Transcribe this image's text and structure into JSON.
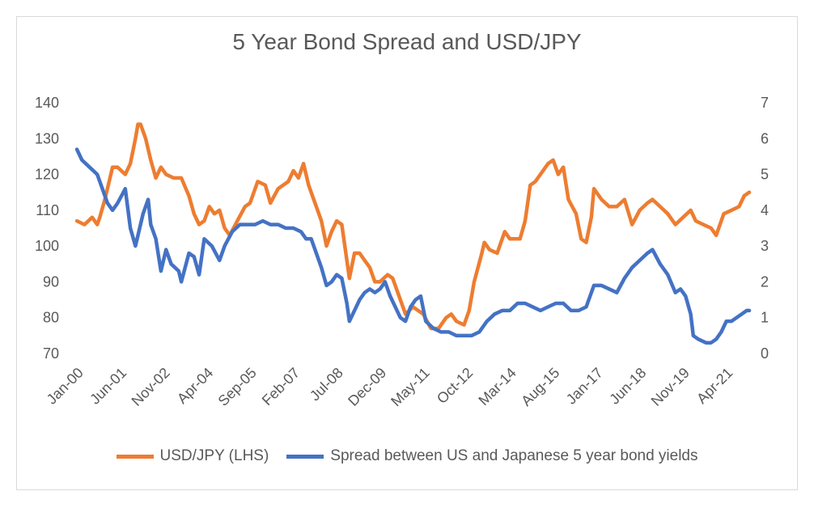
{
  "chart_data": {
    "type": "line",
    "title": "5 Year Bond Spread and USD/JPY",
    "xlabel": "",
    "ylabel": "",
    "ylim_left": [
      70,
      140
    ],
    "yticks_left": [
      "70",
      "80",
      "90",
      "100",
      "110",
      "120",
      "130",
      "140"
    ],
    "ylim_right": [
      0,
      7
    ],
    "yticks_right": [
      "0",
      "1",
      "2",
      "3",
      "4",
      "5",
      "6",
      "7"
    ],
    "x_tick_labels": [
      "Jan-00",
      "Jun-01",
      "Nov-02",
      "Apr-04",
      "Sep-05",
      "Feb-07",
      "Jul-08",
      "Dec-09",
      "May-11",
      "Oct-12",
      "Mar-14",
      "Aug-15",
      "Jan-17",
      "Jun-18",
      "Nov-19",
      "Apr-21"
    ],
    "legend_position": "bottom",
    "grid": false,
    "series": [
      {
        "name": "USD/JPY (LHS)",
        "axis": "left",
        "color": "#ED7D31",
        "points": [
          [
            "2000-01",
            107
          ],
          [
            "2000-04",
            106
          ],
          [
            "2000-07",
            108
          ],
          [
            "2000-09",
            106
          ],
          [
            "2000-10",
            108
          ],
          [
            "2000-12",
            113
          ],
          [
            "2001-03",
            122
          ],
          [
            "2001-05",
            122
          ],
          [
            "2001-08",
            120
          ],
          [
            "2001-10",
            123
          ],
          [
            "2001-12",
            130
          ],
          [
            "2002-01",
            134
          ],
          [
            "2002-02",
            134
          ],
          [
            "2002-04",
            130
          ],
          [
            "2002-06",
            124
          ],
          [
            "2002-08",
            119
          ],
          [
            "2002-10",
            122
          ],
          [
            "2002-12",
            120
          ],
          [
            "2003-03",
            119
          ],
          [
            "2003-06",
            119
          ],
          [
            "2003-09",
            114
          ],
          [
            "2003-11",
            109
          ],
          [
            "2004-01",
            106
          ],
          [
            "2004-03",
            107
          ],
          [
            "2004-05",
            111
          ],
          [
            "2004-07",
            109
          ],
          [
            "2004-09",
            110
          ],
          [
            "2004-11",
            105
          ],
          [
            "2005-01",
            103
          ],
          [
            "2005-04",
            107
          ],
          [
            "2005-07",
            111
          ],
          [
            "2005-09",
            112
          ],
          [
            "2005-12",
            118
          ],
          [
            "2006-03",
            117
          ],
          [
            "2006-05",
            112
          ],
          [
            "2006-08",
            116
          ],
          [
            "2006-12",
            118
          ],
          [
            "2007-02",
            121
          ],
          [
            "2007-04",
            119
          ],
          [
            "2007-06",
            123
          ],
          [
            "2007-08",
            117
          ],
          [
            "2007-11",
            111
          ],
          [
            "2008-01",
            107
          ],
          [
            "2008-03",
            100
          ],
          [
            "2008-05",
            104
          ],
          [
            "2008-07",
            107
          ],
          [
            "2008-09",
            106
          ],
          [
            "2008-11",
            96
          ],
          [
            "2008-12",
            91
          ],
          [
            "2009-02",
            98
          ],
          [
            "2009-04",
            98
          ],
          [
            "2009-06",
            96
          ],
          [
            "2009-08",
            94
          ],
          [
            "2009-10",
            90
          ],
          [
            "2009-12",
            90
          ],
          [
            "2010-03",
            92
          ],
          [
            "2010-05",
            91
          ],
          [
            "2010-08",
            85
          ],
          [
            "2010-10",
            81
          ],
          [
            "2011-01",
            83
          ],
          [
            "2011-03",
            82
          ],
          [
            "2011-05",
            81
          ],
          [
            "2011-08",
            77
          ],
          [
            "2011-11",
            77
          ],
          [
            "2012-02",
            80
          ],
          [
            "2012-04",
            81
          ],
          [
            "2012-06",
            79
          ],
          [
            "2012-09",
            78
          ],
          [
            "2012-11",
            82
          ],
          [
            "2013-01",
            90
          ],
          [
            "2013-04",
            98
          ],
          [
            "2013-05",
            101
          ],
          [
            "2013-07",
            99
          ],
          [
            "2013-10",
            98
          ],
          [
            "2014-01",
            104
          ],
          [
            "2014-03",
            102
          ],
          [
            "2014-07",
            102
          ],
          [
            "2014-09",
            107
          ],
          [
            "2014-11",
            117
          ],
          [
            "2015-01",
            118
          ],
          [
            "2015-03",
            120
          ],
          [
            "2015-06",
            123
          ],
          [
            "2015-08",
            124
          ],
          [
            "2015-10",
            120
          ],
          [
            "2015-12",
            122
          ],
          [
            "2016-02",
            113
          ],
          [
            "2016-05",
            109
          ],
          [
            "2016-07",
            102
          ],
          [
            "2016-09",
            101
          ],
          [
            "2016-11",
            108
          ],
          [
            "2016-12",
            116
          ],
          [
            "2017-03",
            113
          ],
          [
            "2017-06",
            111
          ],
          [
            "2017-09",
            111
          ],
          [
            "2017-12",
            113
          ],
          [
            "2018-03",
            106
          ],
          [
            "2018-06",
            110
          ],
          [
            "2018-09",
            112
          ],
          [
            "2018-11",
            113
          ],
          [
            "2019-02",
            111
          ],
          [
            "2019-05",
            109
          ],
          [
            "2019-08",
            106
          ],
          [
            "2019-11",
            108
          ],
          [
            "2020-02",
            110
          ],
          [
            "2020-04",
            107
          ],
          [
            "2020-07",
            106
          ],
          [
            "2020-10",
            105
          ],
          [
            "2020-12",
            103
          ],
          [
            "2021-03",
            109
          ],
          [
            "2021-06",
            110
          ],
          [
            "2021-09",
            111
          ],
          [
            "2021-11",
            114
          ],
          [
            "2022-01",
            115
          ]
        ]
      },
      {
        "name": "Spread between US and Japanese 5 year bond yields",
        "axis": "right",
        "color": "#4472C4",
        "points": [
          [
            "2000-01",
            5.7
          ],
          [
            "2000-03",
            5.4
          ],
          [
            "2000-06",
            5.2
          ],
          [
            "2000-09",
            5.0
          ],
          [
            "2000-11",
            4.6
          ],
          [
            "2001-01",
            4.2
          ],
          [
            "2001-03",
            4.0
          ],
          [
            "2001-05",
            4.2
          ],
          [
            "2001-08",
            4.6
          ],
          [
            "2001-10",
            3.5
          ],
          [
            "2001-12",
            3.0
          ],
          [
            "2002-03",
            3.9
          ],
          [
            "2002-05",
            4.3
          ],
          [
            "2002-06",
            3.6
          ],
          [
            "2002-08",
            3.2
          ],
          [
            "2002-10",
            2.3
          ],
          [
            "2002-12",
            2.9
          ],
          [
            "2003-02",
            2.5
          ],
          [
            "2003-05",
            2.3
          ],
          [
            "2003-06",
            2.0
          ],
          [
            "2003-09",
            2.8
          ],
          [
            "2003-11",
            2.7
          ],
          [
            "2004-01",
            2.2
          ],
          [
            "2004-03",
            3.2
          ],
          [
            "2004-06",
            3.0
          ],
          [
            "2004-09",
            2.6
          ],
          [
            "2004-11",
            3.0
          ],
          [
            "2005-02",
            3.4
          ],
          [
            "2005-05",
            3.6
          ],
          [
            "2005-08",
            3.6
          ],
          [
            "2005-11",
            3.6
          ],
          [
            "2006-02",
            3.7
          ],
          [
            "2006-05",
            3.6
          ],
          [
            "2006-08",
            3.6
          ],
          [
            "2006-11",
            3.5
          ],
          [
            "2007-02",
            3.5
          ],
          [
            "2007-05",
            3.4
          ],
          [
            "2007-07",
            3.2
          ],
          [
            "2007-09",
            3.2
          ],
          [
            "2007-11",
            2.8
          ],
          [
            "2008-01",
            2.4
          ],
          [
            "2008-03",
            1.9
          ],
          [
            "2008-05",
            2.0
          ],
          [
            "2008-07",
            2.2
          ],
          [
            "2008-09",
            2.1
          ],
          [
            "2008-11",
            1.4
          ],
          [
            "2008-12",
            0.9
          ],
          [
            "2009-02",
            1.2
          ],
          [
            "2009-04",
            1.5
          ],
          [
            "2009-06",
            1.7
          ],
          [
            "2009-08",
            1.8
          ],
          [
            "2009-10",
            1.7
          ],
          [
            "2009-12",
            1.8
          ],
          [
            "2010-02",
            2.0
          ],
          [
            "2010-04",
            1.6
          ],
          [
            "2010-06",
            1.3
          ],
          [
            "2010-08",
            1.0
          ],
          [
            "2010-10",
            0.9
          ],
          [
            "2010-12",
            1.3
          ],
          [
            "2011-02",
            1.5
          ],
          [
            "2011-04",
            1.6
          ],
          [
            "2011-06",
            0.9
          ],
          [
            "2011-09",
            0.7
          ],
          [
            "2011-12",
            0.6
          ],
          [
            "2012-03",
            0.6
          ],
          [
            "2012-06",
            0.5
          ],
          [
            "2012-09",
            0.5
          ],
          [
            "2012-12",
            0.5
          ],
          [
            "2013-03",
            0.6
          ],
          [
            "2013-06",
            0.9
          ],
          [
            "2013-09",
            1.1
          ],
          [
            "2013-12",
            1.2
          ],
          [
            "2014-03",
            1.2
          ],
          [
            "2014-06",
            1.4
          ],
          [
            "2014-09",
            1.4
          ],
          [
            "2014-12",
            1.3
          ],
          [
            "2015-03",
            1.2
          ],
          [
            "2015-06",
            1.3
          ],
          [
            "2015-09",
            1.4
          ],
          [
            "2015-12",
            1.4
          ],
          [
            "2016-03",
            1.2
          ],
          [
            "2016-06",
            1.2
          ],
          [
            "2016-09",
            1.3
          ],
          [
            "2016-12",
            1.9
          ],
          [
            "2017-03",
            1.9
          ],
          [
            "2017-06",
            1.8
          ],
          [
            "2017-09",
            1.7
          ],
          [
            "2017-12",
            2.1
          ],
          [
            "2018-03",
            2.4
          ],
          [
            "2018-06",
            2.6
          ],
          [
            "2018-09",
            2.8
          ],
          [
            "2018-11",
            2.9
          ],
          [
            "2019-02",
            2.5
          ],
          [
            "2019-05",
            2.2
          ],
          [
            "2019-08",
            1.7
          ],
          [
            "2019-10",
            1.8
          ],
          [
            "2019-12",
            1.6
          ],
          [
            "2020-02",
            1.1
          ],
          [
            "2020-03",
            0.5
          ],
          [
            "2020-05",
            0.4
          ],
          [
            "2020-08",
            0.3
          ],
          [
            "2020-10",
            0.3
          ],
          [
            "2020-12",
            0.4
          ],
          [
            "2021-02",
            0.6
          ],
          [
            "2021-04",
            0.9
          ],
          [
            "2021-06",
            0.9
          ],
          [
            "2021-08",
            1.0
          ],
          [
            "2021-10",
            1.1
          ],
          [
            "2021-12",
            1.2
          ],
          [
            "2022-01",
            1.2
          ]
        ]
      }
    ]
  }
}
